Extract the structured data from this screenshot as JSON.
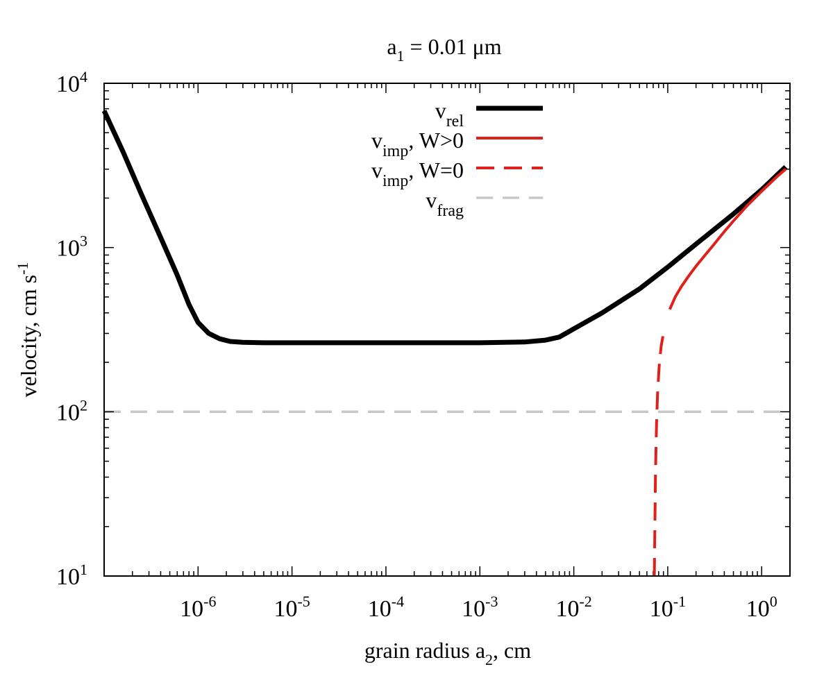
{
  "chart_data": {
    "type": "line",
    "title": {
      "main": "a",
      "sub": "1",
      "rest": " = 0.01 μm"
    },
    "xlabel": {
      "main": "grain radius a",
      "sub": "2",
      "rest": ", cm"
    },
    "ylabel": {
      "main": "velocity, cm s",
      "sup": "-1"
    },
    "x_scale": "log",
    "y_scale": "log",
    "xlim": [
      1e-07,
      2
    ],
    "ylim": [
      10,
      10000
    ],
    "x_ticks": [
      {
        "value": 1e-06,
        "base": "10",
        "exp": "-6"
      },
      {
        "value": 1e-05,
        "base": "10",
        "exp": "-5"
      },
      {
        "value": 0.0001,
        "base": "10",
        "exp": "-4"
      },
      {
        "value": 0.001,
        "base": "10",
        "exp": "-3"
      },
      {
        "value": 0.01,
        "base": "10",
        "exp": "-2"
      },
      {
        "value": 0.1,
        "base": "10",
        "exp": "-1"
      },
      {
        "value": 1,
        "base": "10",
        "exp": "0"
      }
    ],
    "y_ticks": [
      {
        "value": 10,
        "base": "10",
        "exp": "1"
      },
      {
        "value": 100,
        "base": "10",
        "exp": "2"
      },
      {
        "value": 1000,
        "base": "10",
        "exp": "3"
      },
      {
        "value": 10000,
        "base": "10",
        "exp": "4"
      }
    ],
    "legend_position": "top-center",
    "series": [
      {
        "name": "v_rel",
        "label": {
          "main": "v",
          "sub": "rel",
          "rest": ""
        },
        "color": "#000000",
        "style": "solid-thick",
        "x": [
          1e-07,
          1.6e-07,
          2.5e-07,
          4e-07,
          6e-07,
          8e-07,
          1e-06,
          1.3e-06,
          1.7e-06,
          2.2e-06,
          3e-06,
          5e-06,
          1e-05,
          0.0001,
          0.001,
          0.003,
          0.005,
          0.007,
          0.01,
          0.02,
          0.05,
          0.1,
          0.2,
          0.5,
          1,
          1.8
        ],
        "y": [
          6800,
          3800,
          2100,
          1150,
          680,
          450,
          350,
          300,
          278,
          268,
          265,
          263,
          263,
          263,
          263,
          266,
          273,
          285,
          320,
          400,
          560,
          760,
          1050,
          1600,
          2250,
          3100
        ]
      },
      {
        "name": "v_imp, W>0",
        "label": {
          "main": "v",
          "sub": "imp",
          "rest": ", W>0"
        },
        "color": "#e0201a",
        "style": "solid",
        "x": [
          0.105,
          0.12,
          0.14,
          0.17,
          0.2,
          0.25,
          0.3,
          0.4,
          0.5,
          0.7,
          1.0,
          1.4,
          1.8
        ],
        "y": [
          420,
          500,
          580,
          680,
          770,
          900,
          1020,
          1250,
          1450,
          1800,
          2200,
          2650,
          3000
        ]
      },
      {
        "name": "v_imp, W=0",
        "label": {
          "main": "v",
          "sub": "imp",
          "rest": ", W=0"
        },
        "color": "#e0201a",
        "style": "dashed",
        "x": [
          0.072,
          0.0725,
          0.073,
          0.0735,
          0.074,
          0.075,
          0.076,
          0.078,
          0.081,
          0.085,
          0.09
        ],
        "y": [
          10,
          14,
          20,
          28,
          40,
          60,
          85,
          130,
          190,
          250,
          300
        ]
      },
      {
        "name": "v_frag",
        "label": {
          "main": "v",
          "sub": "frag",
          "rest": ""
        },
        "color": "#c8c8c8",
        "style": "dashed-gray",
        "x": [
          1e-07,
          2
        ],
        "y": [
          100,
          100
        ]
      }
    ]
  }
}
